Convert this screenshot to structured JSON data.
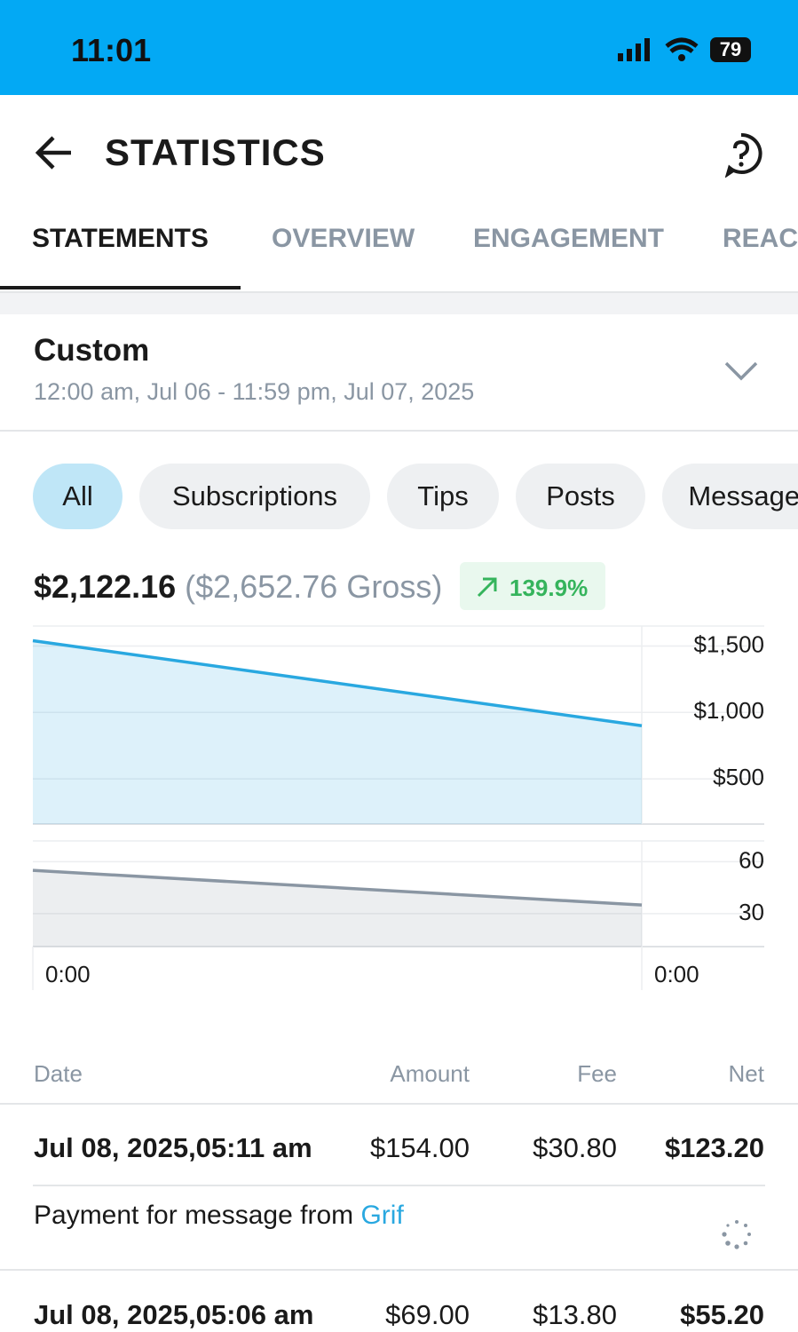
{
  "status_bar": {
    "time": "11:01",
    "battery": "79"
  },
  "header": {
    "title": "STATISTICS"
  },
  "tabs": [
    "STATEMENTS",
    "OVERVIEW",
    "ENGAGEMENT",
    "REACH"
  ],
  "period": {
    "label": "Custom",
    "range": "12:00 am, Jul 06 - 11:59 pm, Jul 07, 2025"
  },
  "filters": [
    "All",
    "Subscriptions",
    "Tips",
    "Posts",
    "Messages"
  ],
  "summary": {
    "net": "$2,122.16",
    "gross": "($2,652.76 Gross)",
    "change": "139.9%"
  },
  "chart_data": [
    {
      "type": "area",
      "categories": [
        "0:00",
        "0:00"
      ],
      "values": [
        1540,
        900
      ],
      "color": "#29a8e0",
      "ylim": [
        160,
        1650
      ],
      "yticks": [
        {
          "value": 500,
          "label": "$500"
        },
        {
          "value": 1000,
          "label": "$1,000"
        },
        {
          "value": 1500,
          "label": "$1,500"
        }
      ],
      "grid": true
    },
    {
      "type": "area",
      "categories": [
        "0:00",
        "0:00"
      ],
      "values": [
        55,
        35
      ],
      "color": "#8a96a3",
      "ylim": [
        11,
        72
      ],
      "yticks": [
        30,
        60
      ],
      "grid": true
    }
  ],
  "table": {
    "columns": [
      "Date",
      "Amount",
      "Fee",
      "Net"
    ],
    "rows": [
      {
        "date": "Jul 08, 2025,05:11 am",
        "amount": "$154.00",
        "fee": "$30.80",
        "net": "$123.20",
        "description": "Payment for message from ",
        "sender": "Grif"
      },
      {
        "date": "Jul 08, 2025,05:06 am",
        "amount": "$69.00",
        "fee": "$13.80",
        "net": "$55.20"
      }
    ]
  }
}
